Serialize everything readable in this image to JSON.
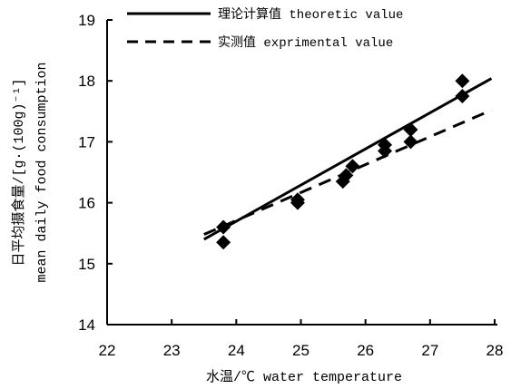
{
  "chart_data": {
    "type": "line",
    "xlabel": "水温/℃  water temperature",
    "ylabel_line1": "日平均摄食量/[g·(100g)⁻¹]",
    "ylabel_line2": "mean daily food consumption",
    "xlim": [
      22,
      28
    ],
    "ylim": [
      14,
      19
    ],
    "xticks": [
      22,
      23,
      24,
      25,
      26,
      27,
      28
    ],
    "yticks": [
      14,
      15,
      16,
      17,
      18,
      19
    ],
    "grid": false,
    "legend_position": "top",
    "series": [
      {
        "name": "理论计算值  theoretic value",
        "style": "solid",
        "line": {
          "x": [
            23.5,
            27.95
          ],
          "y": [
            15.4,
            18.04
          ]
        }
      },
      {
        "name": "实测值  exprimental value",
        "style": "dashed",
        "line": {
          "x": [
            23.5,
            27.95
          ],
          "y": [
            15.48,
            17.52
          ]
        }
      }
    ],
    "points": [
      {
        "x": 23.8,
        "y": 15.6
      },
      {
        "x": 23.8,
        "y": 15.35
      },
      {
        "x": 24.95,
        "y": 16.05
      },
      {
        "x": 24.95,
        "y": 16.0
      },
      {
        "x": 25.65,
        "y": 16.35
      },
      {
        "x": 25.7,
        "y": 16.45
      },
      {
        "x": 25.8,
        "y": 16.6
      },
      {
        "x": 26.3,
        "y": 16.95
      },
      {
        "x": 26.3,
        "y": 16.85
      },
      {
        "x": 26.7,
        "y": 17.2
      },
      {
        "x": 26.7,
        "y": 17.0
      },
      {
        "x": 27.5,
        "y": 18.0
      },
      {
        "x": 27.5,
        "y": 17.75
      }
    ]
  }
}
